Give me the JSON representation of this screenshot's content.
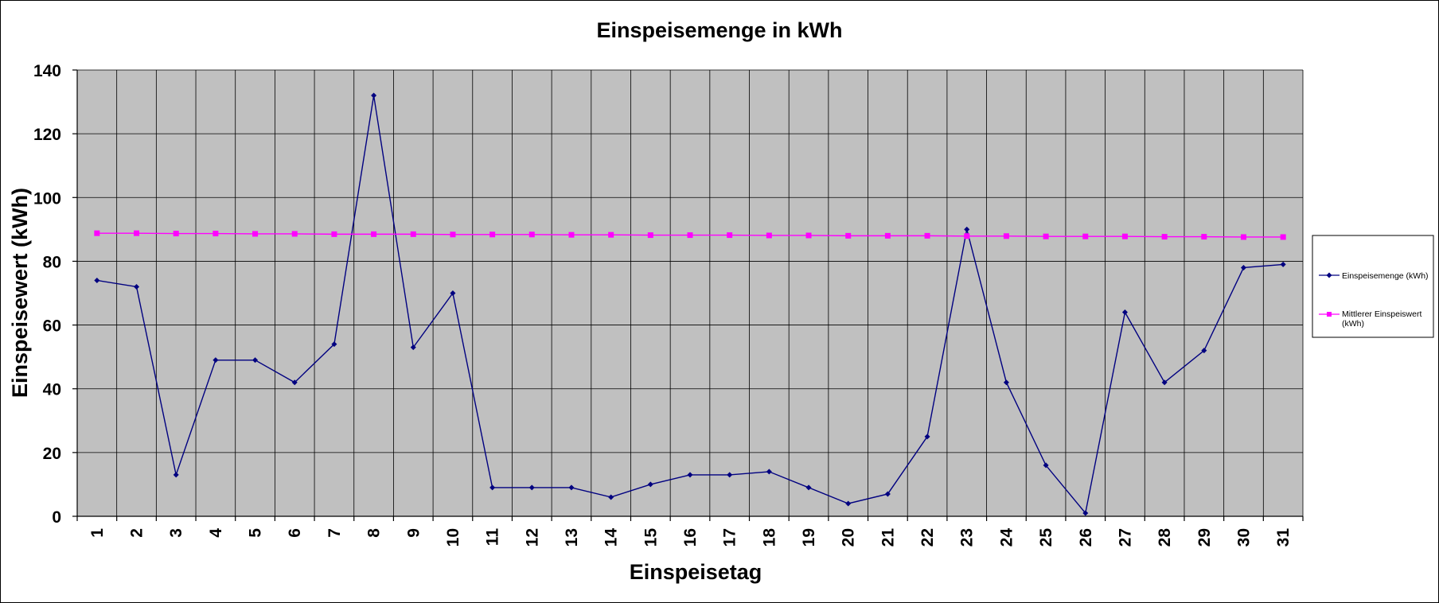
{
  "chart_data": {
    "type": "line",
    "title": "Einspeisemenge in kWh",
    "xlabel": "Einspeisetag",
    "ylabel": "Einspeisewert  (kWh)",
    "categories": [
      "1",
      "2",
      "3",
      "4",
      "5",
      "6",
      "7",
      "8",
      "9",
      "10",
      "11",
      "12",
      "13",
      "14",
      "15",
      "16",
      "17",
      "18",
      "19",
      "20",
      "21",
      "22",
      "23",
      "24",
      "25",
      "26",
      "27",
      "28",
      "29",
      "30",
      "31"
    ],
    "ylim": [
      0,
      140
    ],
    "yticks": [
      0,
      20,
      40,
      60,
      80,
      100,
      120,
      140
    ],
    "grid": true,
    "legend_position": "right",
    "plot_background": "#c0c0c0",
    "series": [
      {
        "name": "Einspeisemenge (kWh)",
        "color": "#000080",
        "marker": "diamond",
        "values": [
          74,
          72,
          13,
          49,
          49,
          42,
          54,
          132,
          53,
          70,
          9,
          9,
          9,
          6,
          10,
          13,
          13,
          14,
          9,
          4,
          7,
          25,
          90,
          42,
          16,
          1,
          64,
          42,
          52,
          78,
          79
        ]
      },
      {
        "name_lines": [
          "Mittlerer Einspeiswert",
          "(kWh)"
        ],
        "color": "#ff00ff",
        "marker": "square",
        "values": [
          88.8,
          88.8,
          88.7,
          88.7,
          88.6,
          88.6,
          88.5,
          88.5,
          88.5,
          88.4,
          88.4,
          88.4,
          88.3,
          88.3,
          88.2,
          88.2,
          88.2,
          88.1,
          88.1,
          88.0,
          88.0,
          88.0,
          87.9,
          87.9,
          87.8,
          87.8,
          87.8,
          87.7,
          87.7,
          87.6,
          87.6
        ]
      }
    ]
  }
}
